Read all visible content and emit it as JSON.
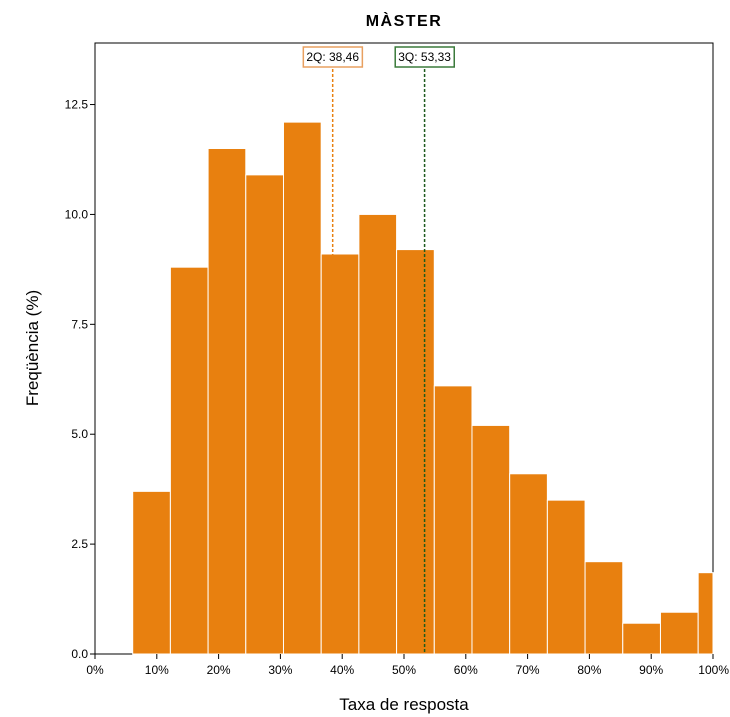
{
  "chart_data": {
    "type": "bar",
    "title": "MÀSTER",
    "xlabel": "Taxa de resposta",
    "ylabel": "Freqüència (%)",
    "xlim": [
      0,
      100
    ],
    "ylim": [
      0,
      13.9
    ],
    "x_ticks": [
      0,
      10,
      20,
      30,
      40,
      50,
      60,
      70,
      80,
      90,
      100
    ],
    "x_tick_labels": [
      "0%",
      "10%",
      "20%",
      "30%",
      "40%",
      "50%",
      "60%",
      "70%",
      "80%",
      "90%",
      "100%"
    ],
    "y_ticks": [
      0,
      2.5,
      5,
      7.5,
      10,
      12.5
    ],
    "y_tick_labels": [
      "0.0",
      "2.5",
      "5.0",
      "7.5",
      "10.0",
      "12.5"
    ],
    "bar_color": "#e8800f",
    "bars": [
      {
        "x0": 6.1,
        "x1": 12.2,
        "value": 3.7
      },
      {
        "x0": 12.2,
        "x1": 18.3,
        "value": 8.8
      },
      {
        "x0": 18.3,
        "x1": 24.4,
        "value": 11.5
      },
      {
        "x0": 24.4,
        "x1": 30.5,
        "value": 10.9
      },
      {
        "x0": 30.5,
        "x1": 36.6,
        "value": 12.1
      },
      {
        "x0": 36.6,
        "x1": 42.7,
        "value": 9.1
      },
      {
        "x0": 42.7,
        "x1": 48.8,
        "value": 10.0
      },
      {
        "x0": 48.8,
        "x1": 54.9,
        "value": 9.2
      },
      {
        "x0": 54.9,
        "x1": 61.0,
        "value": 6.1
      },
      {
        "x0": 61.0,
        "x1": 67.1,
        "value": 5.2
      },
      {
        "x0": 67.1,
        "x1": 73.2,
        "value": 4.1
      },
      {
        "x0": 73.2,
        "x1": 79.3,
        "value": 3.5
      },
      {
        "x0": 79.3,
        "x1": 85.4,
        "value": 2.1
      },
      {
        "x0": 85.4,
        "x1": 91.5,
        "value": 0.7
      },
      {
        "x0": 91.5,
        "x1": 97.6,
        "value": 0.95
      },
      {
        "x0": 97.6,
        "x1": 100.0,
        "value": 1.85
      }
    ],
    "reference_lines": [
      {
        "label": "2Q: 38,46",
        "x": 38.46,
        "color": "#e8800f",
        "box_color": "#e8a060"
      },
      {
        "label": "3Q: 53,33",
        "x": 53.33,
        "color": "#1d5a1d",
        "box_color": "#3b7a3b"
      }
    ]
  }
}
